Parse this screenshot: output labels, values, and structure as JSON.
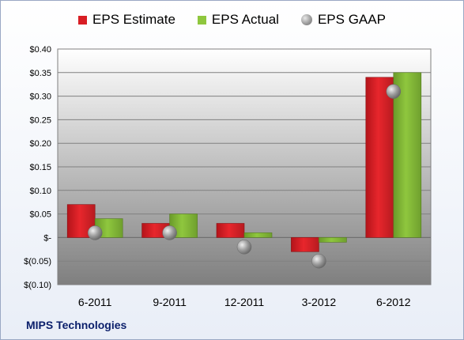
{
  "chart_data": {
    "type": "bar",
    "categories": [
      "6-2011",
      "9-2011",
      "12-2011",
      "3-2012",
      "6-2012"
    ],
    "series": [
      {
        "name": "EPS Estimate",
        "type": "bar",
        "color": "#e8262c",
        "values": [
          0.07,
          0.03,
          0.03,
          -0.03,
          0.34
        ]
      },
      {
        "name": "EPS Actual",
        "type": "bar",
        "color": "#8fc73e",
        "values": [
          0.04,
          0.05,
          0.01,
          -0.01,
          0.35
        ]
      },
      {
        "name": "EPS GAAP",
        "type": "scatter",
        "color": "#9e9e9e",
        "values": [
          0.01,
          0.01,
          -0.02,
          -0.05,
          0.31
        ]
      }
    ],
    "ylim": [
      -0.1,
      0.4
    ],
    "yticks": [
      0.4,
      0.35,
      0.3,
      0.25,
      0.2,
      0.15,
      0.1,
      0.05,
      0.0,
      -0.05,
      -0.1
    ],
    "ytick_labels": [
      "$0.40",
      "$0.35",
      "$0.30",
      "$0.25",
      "$0.20",
      "$0.15",
      "$0.10",
      "$0.05",
      "$-",
      "$(0.05)",
      "$(0.10)"
    ],
    "grid": true,
    "legend_position": "top"
  },
  "legend": {
    "estimate": "EPS Estimate",
    "actual": "EPS Actual",
    "gaap": "EPS GAAP"
  },
  "company_label": "MIPS Technologies"
}
